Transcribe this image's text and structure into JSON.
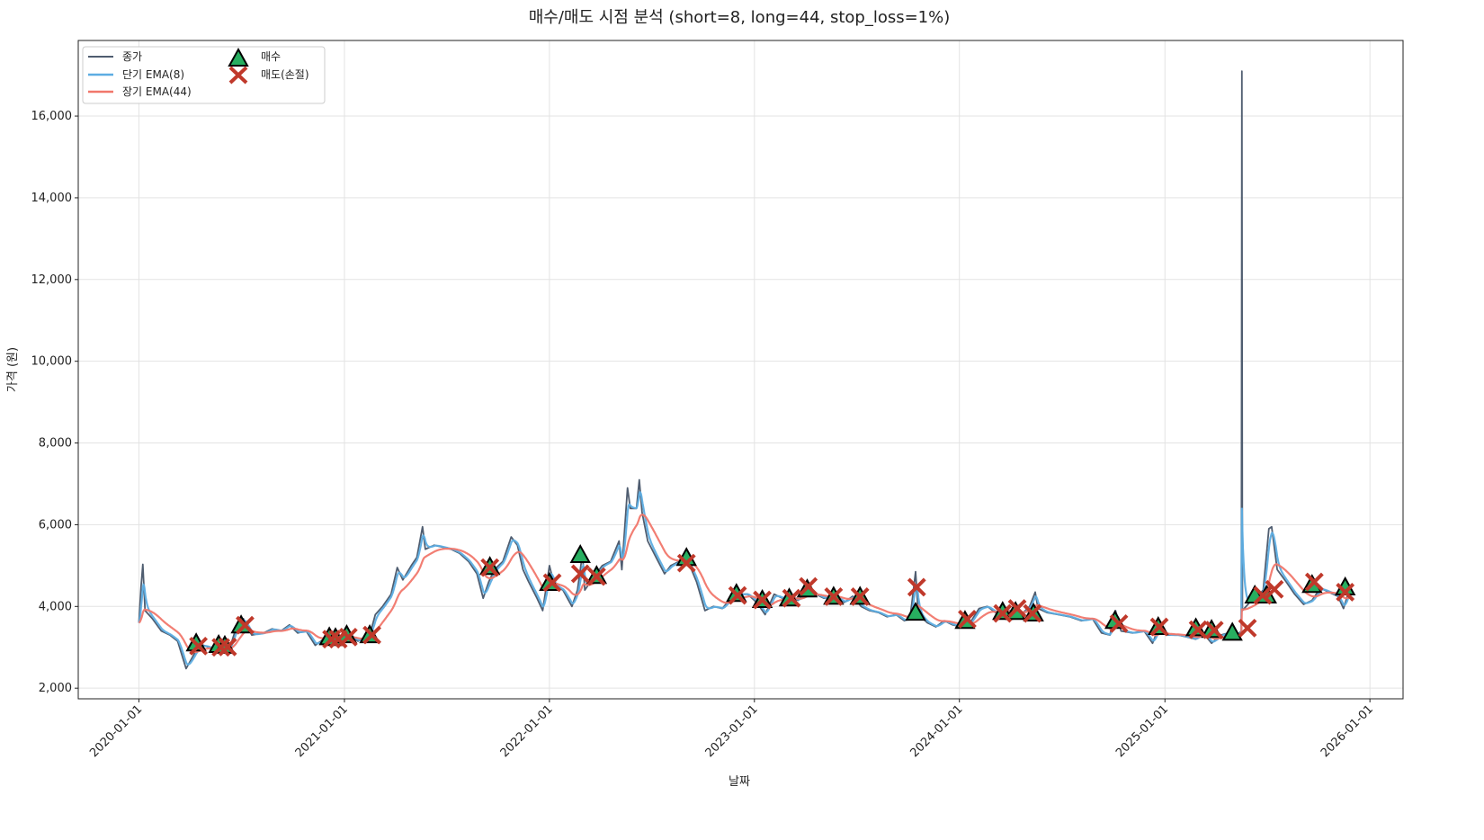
{
  "chart_data": {
    "type": "line",
    "title": "매수/매도 시점 분석 (short=8, long=44, stop_loss=1%)",
    "xlabel": "날짜",
    "ylabel": "가격 (원)",
    "xlim": [
      "2019-09-15",
      "2026-03-01"
    ],
    "ylim": [
      1740,
      17850
    ],
    "grid": true,
    "legend_position": "top-left",
    "yticks": [
      2000,
      4000,
      6000,
      8000,
      10000,
      12000,
      14000,
      16000
    ],
    "ytick_labels": [
      "2,000",
      "4,000",
      "6,000",
      "8,000",
      "10,000",
      "12,000",
      "14,000",
      "16,000"
    ],
    "xticks": [
      "2020-01-01",
      "2021-01-01",
      "2022-01-01",
      "2023-01-01",
      "2024-01-01",
      "2025-01-01",
      "2026-01-01"
    ],
    "ema_spans": {
      "short": 8,
      "long": 44
    },
    "legend": {
      "close": "종가",
      "short": "단기 EMA(8)",
      "long": "장기 EMA(44)",
      "buy": "매수",
      "sell": "매도(손절)"
    },
    "colors": {
      "close": "#4f5d70",
      "short": "#5dade2",
      "long": "#f1776b",
      "buy": "#27ae60",
      "sell": "#c0392b"
    },
    "close": [
      [
        "2020-01-01",
        3600
      ],
      [
        "2020-01-05",
        4500
      ],
      [
        "2020-01-08",
        5030
      ],
      [
        "2020-01-12",
        3900
      ],
      [
        "2020-01-25",
        3700
      ],
      [
        "2020-02-10",
        3400
      ],
      [
        "2020-02-25",
        3300
      ],
      [
        "2020-03-10",
        3150
      ],
      [
        "2020-03-20",
        2700
      ],
      [
        "2020-03-25",
        2480
      ],
      [
        "2020-04-05",
        2750
      ],
      [
        "2020-04-15",
        3000
      ],
      [
        "2020-04-25",
        3050
      ],
      [
        "2020-05-15",
        2950
      ],
      [
        "2020-05-30",
        3000
      ],
      [
        "2020-06-10",
        2950
      ],
      [
        "2020-06-25",
        3600
      ],
      [
        "2020-07-05",
        3700
      ],
      [
        "2020-07-20",
        3300
      ],
      [
        "2020-08-10",
        3350
      ],
      [
        "2020-08-25",
        3450
      ],
      [
        "2020-09-10",
        3400
      ],
      [
        "2020-09-25",
        3550
      ],
      [
        "2020-10-10",
        3350
      ],
      [
        "2020-10-25",
        3400
      ],
      [
        "2020-11-10",
        3050
      ],
      [
        "2020-11-25",
        3200
      ],
      [
        "2020-12-10",
        3250
      ],
      [
        "2020-12-25",
        3200
      ],
      [
        "2021-01-10",
        3300
      ],
      [
        "2021-01-25",
        3150
      ],
      [
        "2021-02-15",
        3300
      ],
      [
        "2021-02-25",
        3800
      ],
      [
        "2021-03-10",
        4000
      ],
      [
        "2021-03-25",
        4300
      ],
      [
        "2021-04-05",
        4950
      ],
      [
        "2021-04-15",
        4650
      ],
      [
        "2021-04-30",
        5000
      ],
      [
        "2021-05-10",
        5200
      ],
      [
        "2021-05-20",
        5950
      ],
      [
        "2021-05-25",
        5400
      ],
      [
        "2021-06-10",
        5500
      ],
      [
        "2021-06-25",
        5450
      ],
      [
        "2021-07-10",
        5400
      ],
      [
        "2021-07-25",
        5300
      ],
      [
        "2021-08-10",
        5100
      ],
      [
        "2021-08-25",
        4800
      ],
      [
        "2021-09-05",
        4200
      ],
      [
        "2021-09-15",
        4600
      ],
      [
        "2021-09-25",
        4900
      ],
      [
        "2021-10-10",
        5100
      ],
      [
        "2021-10-25",
        5700
      ],
      [
        "2021-11-05",
        5500
      ],
      [
        "2021-11-15",
        4900
      ],
      [
        "2021-11-25",
        4600
      ],
      [
        "2021-12-10",
        4200
      ],
      [
        "2021-12-20",
        3900
      ],
      [
        "2022-01-01",
        5000
      ],
      [
        "2022-01-10",
        4500
      ],
      [
        "2022-01-25",
        4400
      ],
      [
        "2022-02-10",
        4000
      ],
      [
        "2022-02-20",
        4400
      ],
      [
        "2022-03-01",
        5300
      ],
      [
        "2022-03-05",
        4400
      ],
      [
        "2022-03-20",
        4700
      ],
      [
        "2022-04-05",
        5000
      ],
      [
        "2022-04-20",
        5100
      ],
      [
        "2022-05-05",
        5600
      ],
      [
        "2022-05-10",
        4900
      ],
      [
        "2022-05-20",
        6900
      ],
      [
        "2022-05-25",
        6400
      ],
      [
        "2022-06-05",
        6400
      ],
      [
        "2022-06-10",
        7100
      ],
      [
        "2022-06-15",
        6300
      ],
      [
        "2022-06-25",
        5600
      ],
      [
        "2022-07-10",
        5200
      ],
      [
        "2022-07-25",
        4800
      ],
      [
        "2022-08-05",
        5000
      ],
      [
        "2022-08-20",
        5100
      ],
      [
        "2022-09-05",
        5100
      ],
      [
        "2022-09-20",
        4600
      ],
      [
        "2022-10-05",
        3900
      ],
      [
        "2022-10-20",
        4000
      ],
      [
        "2022-11-05",
        3950
      ],
      [
        "2022-11-20",
        4200
      ],
      [
        "2022-12-05",
        4300
      ],
      [
        "2022-12-20",
        4300
      ],
      [
        "2023-01-05",
        4100
      ],
      [
        "2023-01-20",
        3800
      ],
      [
        "2023-02-05",
        4300
      ],
      [
        "2023-02-20",
        4200
      ],
      [
        "2023-03-05",
        4250
      ],
      [
        "2023-03-20",
        4150
      ],
      [
        "2023-04-05",
        4400
      ],
      [
        "2023-04-20",
        4300
      ],
      [
        "2023-05-05",
        4200
      ],
      [
        "2023-05-25",
        4250
      ],
      [
        "2023-06-10",
        4100
      ],
      [
        "2023-06-25",
        4250
      ],
      [
        "2023-07-10",
        4000
      ],
      [
        "2023-07-25",
        3900
      ],
      [
        "2023-08-10",
        3850
      ],
      [
        "2023-08-25",
        3750
      ],
      [
        "2023-09-10",
        3800
      ],
      [
        "2023-09-25",
        3650
      ],
      [
        "2023-10-05",
        3700
      ],
      [
        "2023-10-15",
        4850
      ],
      [
        "2023-10-20",
        3800
      ],
      [
        "2023-11-05",
        3600
      ],
      [
        "2023-11-20",
        3500
      ],
      [
        "2023-12-05",
        3650
      ],
      [
        "2023-12-20",
        3550
      ],
      [
        "2024-01-05",
        3500
      ],
      [
        "2024-01-20",
        3600
      ],
      [
        "2024-02-05",
        3950
      ],
      [
        "2024-02-20",
        4000
      ],
      [
        "2024-03-05",
        3850
      ],
      [
        "2024-03-20",
        3900
      ],
      [
        "2024-04-05",
        3900
      ],
      [
        "2024-04-20",
        3800
      ],
      [
        "2024-05-05",
        4000
      ],
      [
        "2024-05-15",
        4350
      ],
      [
        "2024-05-20",
        3950
      ],
      [
        "2024-06-05",
        3850
      ],
      [
        "2024-06-25",
        3800
      ],
      [
        "2024-07-15",
        3750
      ],
      [
        "2024-08-05",
        3650
      ],
      [
        "2024-08-25",
        3700
      ],
      [
        "2024-09-10",
        3350
      ],
      [
        "2024-09-25",
        3300
      ],
      [
        "2024-10-05",
        3900
      ],
      [
        "2024-10-15",
        3400
      ],
      [
        "2024-11-05",
        3350
      ],
      [
        "2024-11-25",
        3400
      ],
      [
        "2024-12-10",
        3100
      ],
      [
        "2024-12-20",
        3450
      ],
      [
        "2025-01-05",
        3300
      ],
      [
        "2025-01-25",
        3300
      ],
      [
        "2025-02-10",
        3250
      ],
      [
        "2025-02-25",
        3200
      ],
      [
        "2025-03-10",
        3350
      ],
      [
        "2025-03-25",
        3100
      ],
      [
        "2025-04-10",
        3300
      ],
      [
        "2025-04-25",
        3350
      ],
      [
        "2025-05-10",
        3300
      ],
      [
        "2025-05-17",
        3400
      ],
      [
        "2025-05-18",
        17100
      ],
      [
        "2025-05-19",
        3900
      ],
      [
        "2025-06-01",
        4100
      ],
      [
        "2025-06-15",
        4250
      ],
      [
        "2025-06-25",
        4400
      ],
      [
        "2025-07-05",
        5900
      ],
      [
        "2025-07-10",
        5950
      ],
      [
        "2025-07-20",
        4900
      ],
      [
        "2025-08-05",
        4600
      ],
      [
        "2025-08-20",
        4300
      ],
      [
        "2025-09-05",
        4050
      ],
      [
        "2025-09-20",
        4150
      ],
      [
        "2025-10-05",
        4450
      ],
      [
        "2025-10-20",
        4350
      ],
      [
        "2025-11-05",
        4250
      ],
      [
        "2025-11-15",
        3950
      ],
      [
        "2025-11-25",
        4400
      ]
    ],
    "buy_signals": [
      [
        "2020-04-12",
        3100
      ],
      [
        "2020-05-22",
        3060
      ],
      [
        "2020-06-02",
        3040
      ],
      [
        "2020-07-01",
        3540
      ],
      [
        "2020-12-05",
        3250
      ],
      [
        "2020-12-16",
        3230
      ],
      [
        "2021-01-05",
        3300
      ],
      [
        "2021-02-15",
        3300
      ],
      [
        "2021-09-17",
        4970
      ],
      [
        "2022-01-01",
        4580
      ],
      [
        "2022-02-25",
        5260
      ],
      [
        "2022-03-26",
        4750
      ],
      [
        "2022-09-02",
        5190
      ],
      [
        "2022-11-30",
        4310
      ],
      [
        "2023-01-15",
        4160
      ],
      [
        "2023-03-04",
        4200
      ],
      [
        "2023-04-05",
        4420
      ],
      [
        "2023-05-22",
        4240
      ],
      [
        "2023-07-08",
        4240
      ],
      [
        "2023-10-15",
        3850
      ],
      [
        "2024-01-11",
        3650
      ],
      [
        "2024-03-18",
        3870
      ],
      [
        "2024-04-10",
        3870
      ],
      [
        "2024-05-12",
        3830
      ],
      [
        "2024-10-04",
        3650
      ],
      [
        "2024-12-20",
        3500
      ],
      [
        "2025-02-25",
        3470
      ],
      [
        "2025-03-25",
        3430
      ],
      [
        "2025-05-01",
        3360
      ],
      [
        "2025-06-10",
        4270
      ],
      [
        "2025-07-01",
        4270
      ],
      [
        "2025-09-20",
        4530
      ],
      [
        "2025-11-18",
        4470
      ]
    ],
    "sell_signals": [
      [
        "2020-04-16",
        3030
      ],
      [
        "2020-05-26",
        3000
      ],
      [
        "2020-06-07",
        3010
      ],
      [
        "2020-07-08",
        3540
      ],
      [
        "2020-12-09",
        3200
      ],
      [
        "2020-12-21",
        3200
      ],
      [
        "2021-01-08",
        3250
      ],
      [
        "2021-02-19",
        3300
      ],
      [
        "2021-09-17",
        4950
      ],
      [
        "2022-01-06",
        4580
      ],
      [
        "2022-02-25",
        4800
      ],
      [
        "2022-03-26",
        4730
      ],
      [
        "2022-09-02",
        5060
      ],
      [
        "2022-12-02",
        4270
      ],
      [
        "2023-01-15",
        4160
      ],
      [
        "2023-03-08",
        4200
      ],
      [
        "2023-04-07",
        4490
      ],
      [
        "2023-05-22",
        4240
      ],
      [
        "2023-07-08",
        4240
      ],
      [
        "2023-10-17",
        4470
      ],
      [
        "2024-01-15",
        3690
      ],
      [
        "2024-03-18",
        3830
      ],
      [
        "2024-04-13",
        3950
      ],
      [
        "2024-05-10",
        3830
      ],
      [
        "2024-10-11",
        3580
      ],
      [
        "2024-12-22",
        3500
      ],
      [
        "2025-03-01",
        3430
      ],
      [
        "2025-03-30",
        3420
      ],
      [
        "2025-05-28",
        3470
      ],
      [
        "2025-06-24",
        4270
      ],
      [
        "2025-07-15",
        4420
      ],
      [
        "2025-09-24",
        4600
      ],
      [
        "2025-11-18",
        4350
      ]
    ]
  }
}
